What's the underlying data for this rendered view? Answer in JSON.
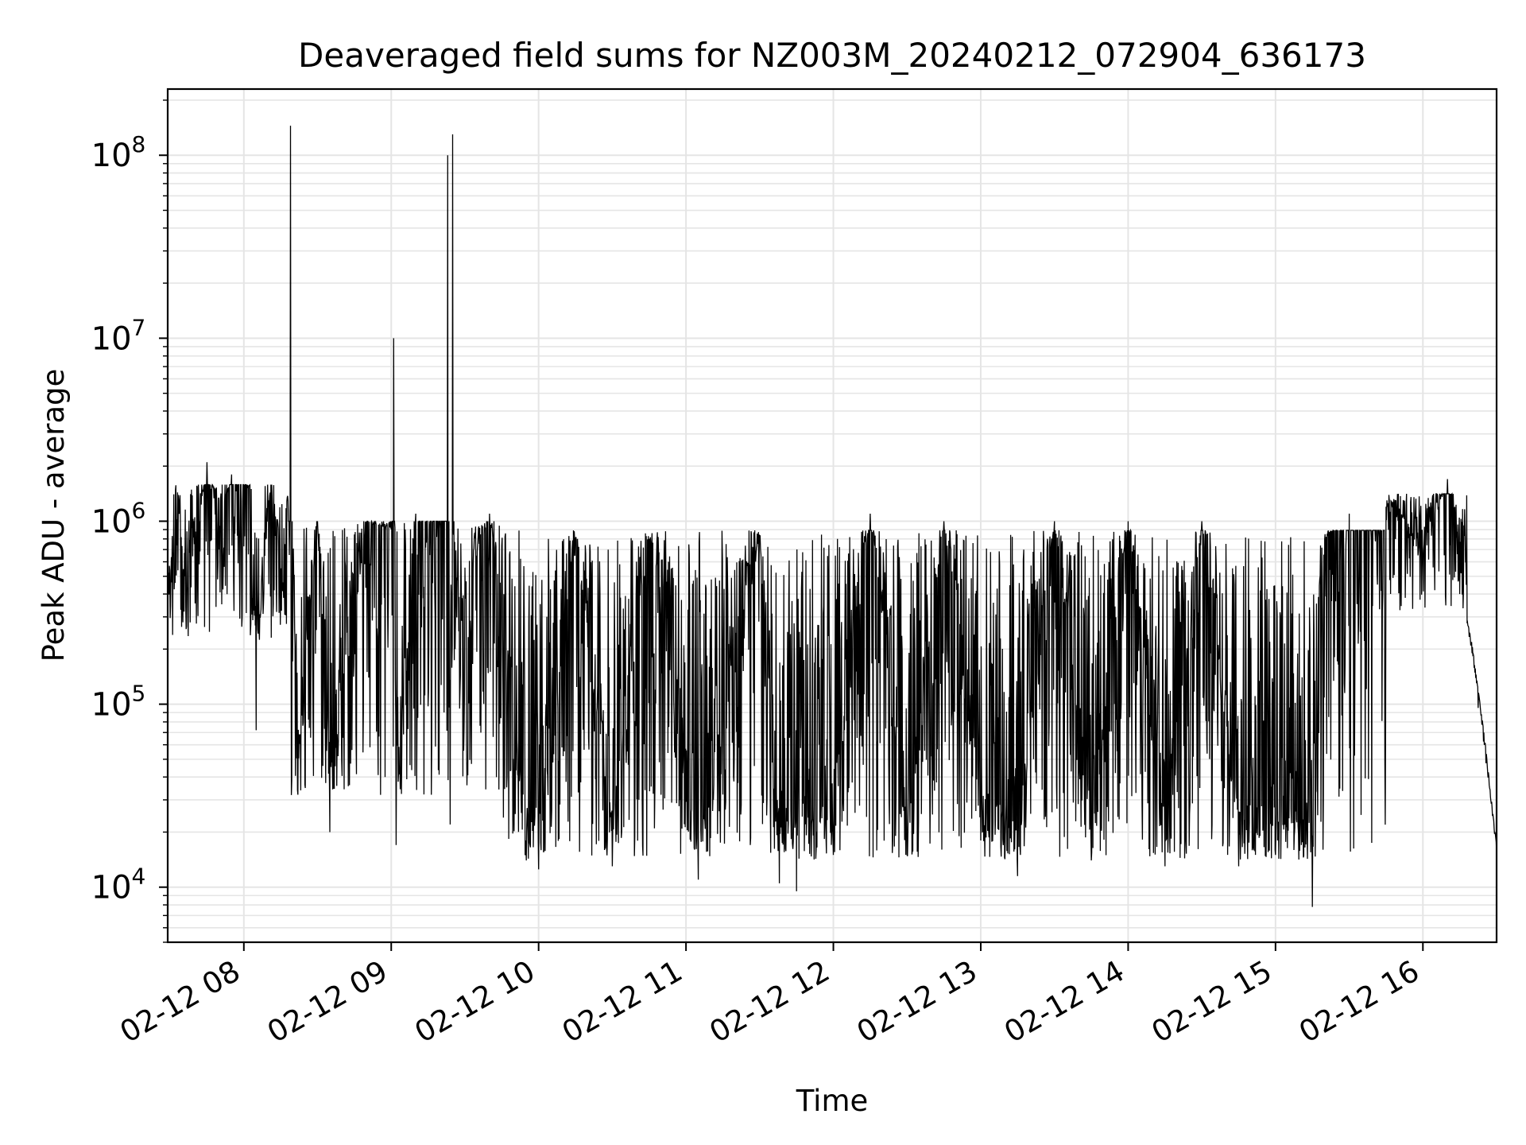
{
  "chart_data": {
    "type": "line",
    "title": "Deaveraged field sums for NZ003M_20240212_072904_636173",
    "xlabel": "Time",
    "ylabel": "Peak ADU - average",
    "yscale": "log",
    "ylim": [
      5000,
      230000000
    ],
    "xlim": [
      "2024-02-12 07:29",
      "2024-02-12 16:30"
    ],
    "grid": true,
    "grid_color": "#e5e5e5",
    "line_color": "#000000",
    "x_ticks": [
      {
        "time": "2024-02-12 08:00",
        "label": "02-12 08"
      },
      {
        "time": "2024-02-12 09:00",
        "label": "02-12 09"
      },
      {
        "time": "2024-02-12 10:00",
        "label": "02-12 10"
      },
      {
        "time": "2024-02-12 11:00",
        "label": "02-12 11"
      },
      {
        "time": "2024-02-12 12:00",
        "label": "02-12 12"
      },
      {
        "time": "2024-02-12 13:00",
        "label": "02-12 13"
      },
      {
        "time": "2024-02-12 14:00",
        "label": "02-12 14"
      },
      {
        "time": "2024-02-12 15:00",
        "label": "02-12 15"
      },
      {
        "time": "2024-02-12 16:00",
        "label": "02-12 16"
      }
    ],
    "y_ticks": [
      {
        "value": 10000,
        "base": "10",
        "exp": "4"
      },
      {
        "value": 100000,
        "base": "10",
        "exp": "5"
      },
      {
        "value": 1000000,
        "base": "10",
        "exp": "6"
      },
      {
        "value": 10000000,
        "base": "10",
        "exp": "7"
      },
      {
        "value": 100000000,
        "base": "10",
        "exp": "8"
      }
    ],
    "series": [
      {
        "points": [
          [
            "2024-02-12 07:29",
            330000
          ],
          [
            "2024-02-12 07:32",
            460000
          ],
          [
            "2024-02-12 07:36",
            500000
          ],
          [
            "2024-02-12 07:42",
            1000000
          ],
          [
            "2024-02-12 07:45",
            2100000
          ],
          [
            "2024-02-12 07:50",
            700000
          ],
          [
            "2024-02-12 07:55",
            1800000
          ],
          [
            "2024-02-12 08:03",
            1500000
          ],
          [
            "2024-02-12 08:05",
            72000
          ],
          [
            "2024-02-12 08:10",
            1300000
          ],
          [
            "2024-02-12 08:15",
            500000
          ],
          [
            "2024-02-12 08:18",
            1300000
          ],
          [
            "2024-02-12 08:19",
            145000000
          ],
          [
            "2024-02-12 08:20",
            300000
          ],
          [
            "2024-02-12 08:22",
            32000
          ],
          [
            "2024-02-12 08:30",
            1000000
          ],
          [
            "2024-02-12 08:35",
            20000
          ],
          [
            "2024-02-12 08:50",
            1000000
          ],
          [
            "2024-02-12 09:00",
            900000
          ],
          [
            "2024-02-12 09:01",
            10000000
          ],
          [
            "2024-02-12 09:02",
            17000
          ],
          [
            "2024-02-12 09:10",
            1100000
          ],
          [
            "2024-02-12 09:20",
            1000000
          ],
          [
            "2024-02-12 09:23",
            100000000
          ],
          [
            "2024-02-12 09:24",
            22000
          ],
          [
            "2024-02-12 09:25",
            130000000
          ],
          [
            "2024-02-12 09:26",
            200000
          ],
          [
            "2024-02-12 09:40",
            1100000
          ],
          [
            "2024-02-12 09:55",
            14000
          ],
          [
            "2024-02-12 10:00",
            12500
          ],
          [
            "2024-02-12 10:15",
            800000
          ],
          [
            "2024-02-12 10:30",
            13000
          ],
          [
            "2024-02-12 10:45",
            800000
          ],
          [
            "2024-02-12 11:05",
            11000
          ],
          [
            "2024-02-12 11:30",
            800000
          ],
          [
            "2024-02-12 11:38",
            10500
          ],
          [
            "2024-02-12 11:45",
            9500
          ],
          [
            "2024-02-12 12:00",
            15000
          ],
          [
            "2024-02-12 12:15",
            1100000
          ],
          [
            "2024-02-12 12:30",
            15000
          ],
          [
            "2024-02-12 12:45",
            1000000
          ],
          [
            "2024-02-12 13:00",
            18000
          ],
          [
            "2024-02-12 13:15",
            11500
          ],
          [
            "2024-02-12 13:30",
            1000000
          ],
          [
            "2024-02-12 13:45",
            14000
          ],
          [
            "2024-02-12 14:00",
            1000000
          ],
          [
            "2024-02-12 14:15",
            13000
          ],
          [
            "2024-02-12 14:30",
            1000000
          ],
          [
            "2024-02-12 14:45",
            13000
          ],
          [
            "2024-02-12 15:00",
            15000
          ],
          [
            "2024-02-12 15:15",
            7800
          ],
          [
            "2024-02-12 15:20",
            800000
          ],
          [
            "2024-02-12 15:30",
            1100000
          ],
          [
            "2024-02-12 15:45",
            1200000
          ],
          [
            "2024-02-12 16:00",
            600000
          ],
          [
            "2024-02-12 16:10",
            1700000
          ],
          [
            "2024-02-12 16:15",
            400000
          ],
          [
            "2024-02-12 16:20",
            190000
          ],
          [
            "2024-02-12 16:25",
            60000
          ],
          [
            "2024-02-12 16:30",
            15000
          ]
        ]
      }
    ]
  }
}
